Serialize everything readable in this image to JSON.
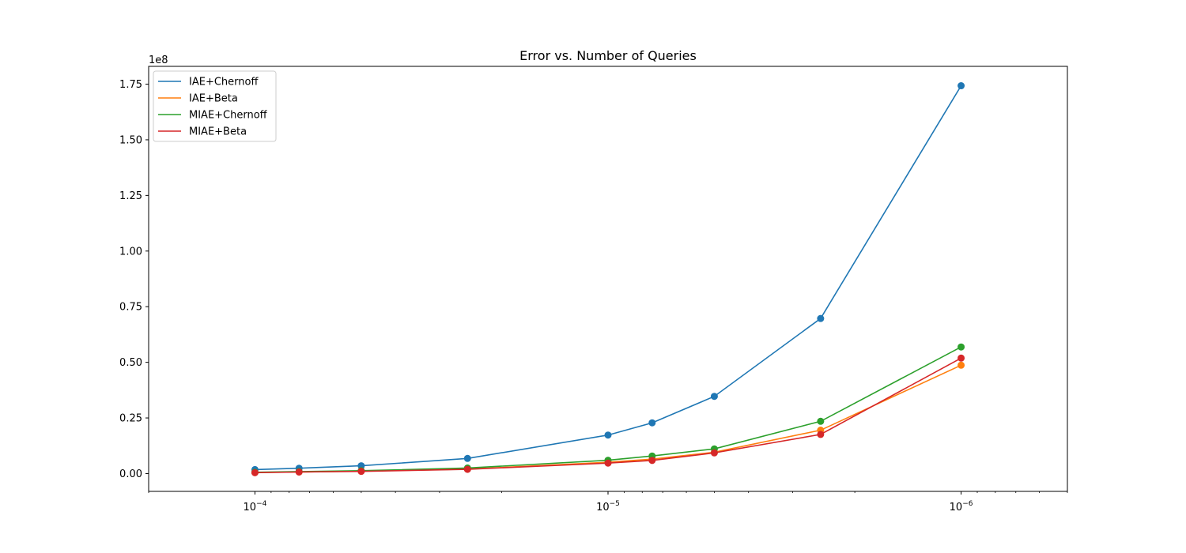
{
  "chart_data": {
    "type": "line",
    "title": "Error vs. Number of Queries",
    "xlabel": "",
    "ylabel": "",
    "x_scale": "log",
    "x_inverted": true,
    "xlim": [
      0.0002,
      5e-07
    ],
    "ylim": [
      -8000000,
      183000000
    ],
    "y_offset_label": "1e8",
    "y_ticks": [
      0,
      25000000,
      50000000,
      75000000,
      100000000,
      125000000,
      150000000,
      175000000
    ],
    "y_tick_labels": [
      "0.00",
      "0.25",
      "0.50",
      "0.75",
      "1.00",
      "1.25",
      "1.50",
      "1.75"
    ],
    "x_ticks": [
      0.0001,
      1e-05,
      1e-06
    ],
    "x_tick_labels": [
      {
        "base": "10",
        "exp": "−4"
      },
      {
        "base": "10",
        "exp": "−5"
      },
      {
        "base": "10",
        "exp": "−6"
      }
    ],
    "grid": false,
    "legend_position": "top-left",
    "x": [
      0.0001,
      7.5e-05,
      5e-05,
      2.5e-05,
      1e-05,
      7.5e-06,
      5e-06,
      2.5e-06,
      1e-06
    ],
    "series": [
      {
        "name": "IAE+Chernoff",
        "color": "#1f77b4",
        "values": [
          1800000,
          2400000,
          3500000,
          6800000,
          17300000,
          22800000,
          34700000,
          69700000,
          174300000
        ]
      },
      {
        "name": "IAE+Beta",
        "color": "#ff7f0e",
        "values": [
          500000,
          700000,
          1100000,
          2000000,
          5100000,
          6500000,
          9600000,
          19500000,
          48700000
        ]
      },
      {
        "name": "MIAE+Chernoff",
        "color": "#2ca02c",
        "values": [
          600000,
          900000,
          1300000,
          2500000,
          6000000,
          7900000,
          11100000,
          23500000,
          56900000
        ]
      },
      {
        "name": "MIAE+Beta",
        "color": "#d62728",
        "values": [
          400000,
          700000,
          1000000,
          1900000,
          4700000,
          5900000,
          9300000,
          17600000,
          51900000
        ]
      }
    ]
  }
}
